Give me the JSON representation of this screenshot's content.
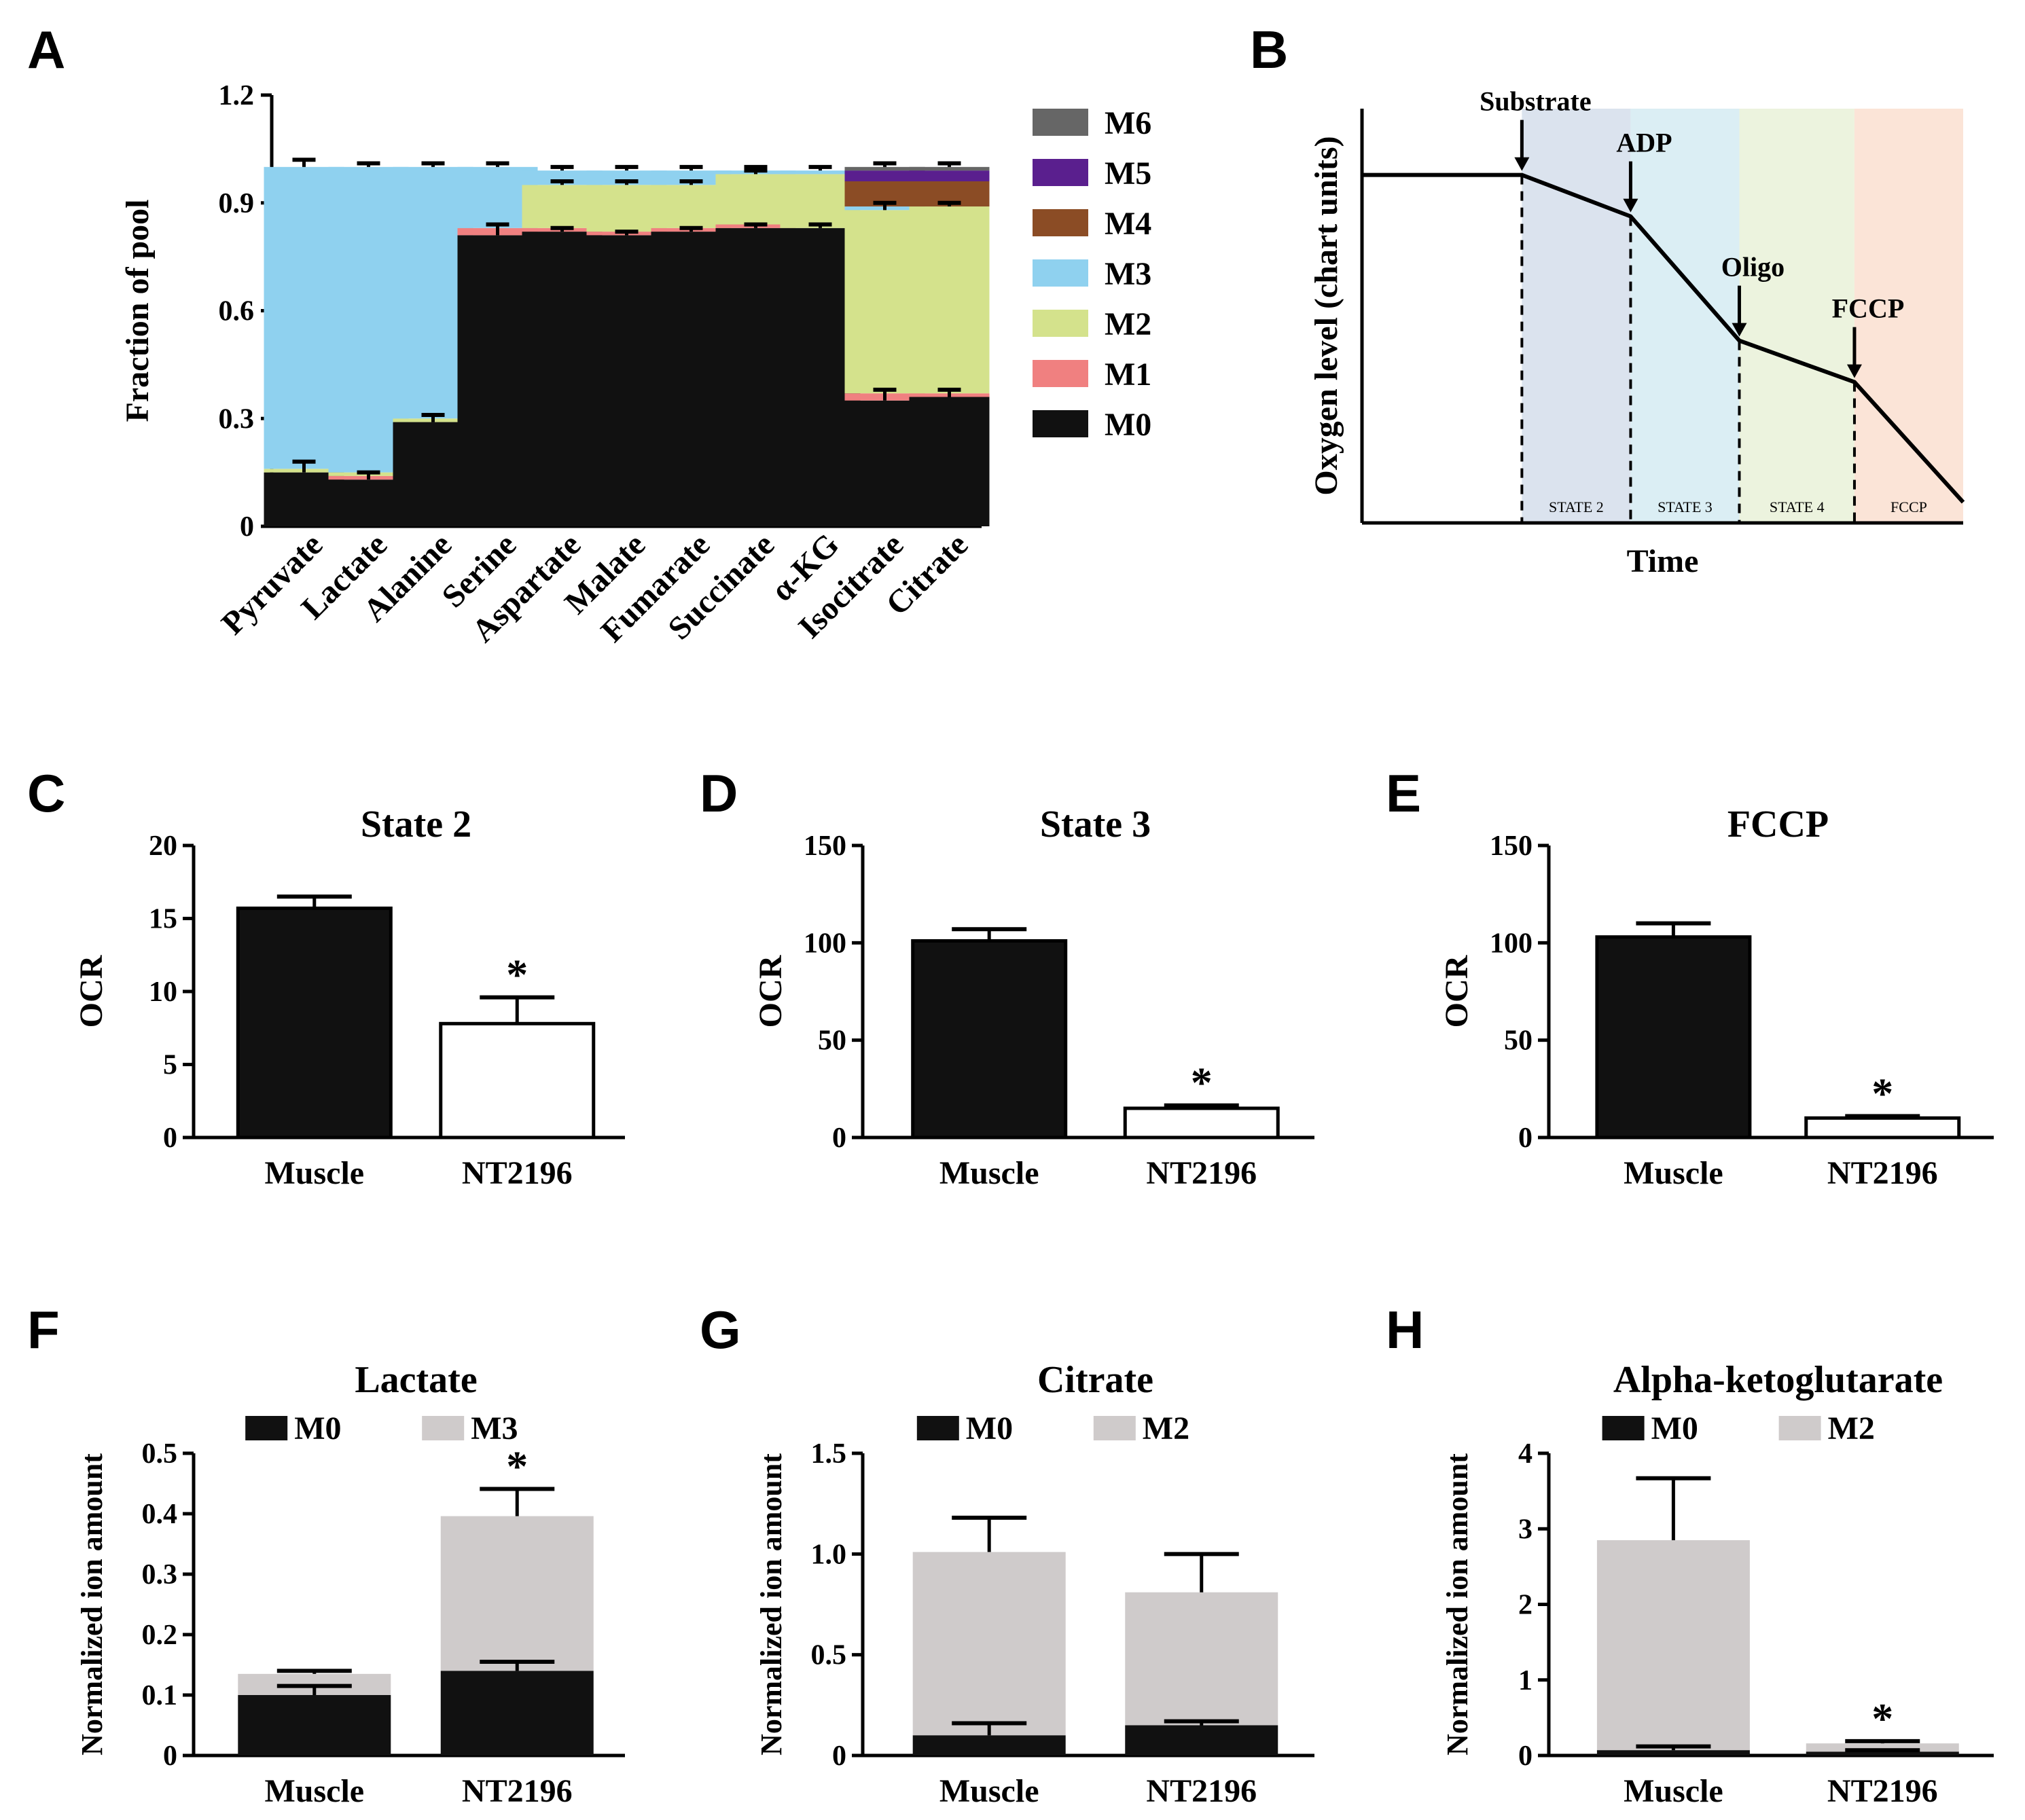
{
  "panels": {
    "A": {
      "label": "A"
    },
    "B": {
      "label": "B"
    },
    "C": {
      "label": "C"
    },
    "D": {
      "label": "D"
    },
    "E": {
      "label": "E"
    },
    "F": {
      "label": "F"
    },
    "G": {
      "label": "G"
    },
    "H": {
      "label": "H"
    }
  },
  "colors": {
    "M0": "#111111",
    "M1": "#f08080",
    "M2": "#d4e28c",
    "M3": "#8fd1ef",
    "M4": "#8b4c25",
    "M5": "#5a1f8e",
    "M6": "#666666",
    "gray": "#cfcbcb",
    "state2": "#dbe3ee",
    "state3": "#dbeef4",
    "state4": "#ecf3de",
    "fccp": "#fbe4d7"
  },
  "chart_data": [
    {
      "id": "A",
      "type": "bar",
      "stacked": true,
      "ylabel": "Fraction of pool",
      "xlabel": "",
      "ylim": [
        0,
        1.2
      ],
      "yticks": [
        "0",
        "0.3",
        "0.6",
        "0.9",
        "1.2"
      ],
      "categories": [
        "Pyruvate",
        "Lactate",
        "Alanine",
        "Serine",
        "Aspartate",
        "Malate",
        "Fumarate",
        "Succinate",
        "α-KG",
        "Isocitrate",
        "Citrate"
      ],
      "legend": [
        "M6",
        "M5",
        "M4",
        "M3",
        "M2",
        "M1",
        "M0"
      ],
      "series": [
        {
          "name": "M0",
          "values": [
            0.15,
            0.13,
            0.29,
            0.81,
            0.82,
            0.81,
            0.82,
            0.83,
            0.83,
            0.35,
            0.36
          ]
        },
        {
          "name": "M1",
          "values": [
            0.0,
            0.01,
            0.0,
            0.02,
            0.01,
            0.01,
            0.01,
            0.01,
            0.0,
            0.02,
            0.01
          ]
        },
        {
          "name": "M2",
          "values": [
            0.01,
            0.01,
            0.01,
            0.0,
            0.12,
            0.13,
            0.12,
            0.14,
            0.15,
            0.51,
            0.52
          ]
        },
        {
          "name": "M3",
          "values": [
            0.84,
            0.85,
            0.7,
            0.17,
            0.04,
            0.04,
            0.04,
            0.01,
            0.01,
            0.01,
            0.0
          ]
        },
        {
          "name": "M4",
          "values": [
            0,
            0,
            0,
            0,
            0,
            0,
            0,
            0,
            0,
            0.07,
            0.07
          ]
        },
        {
          "name": "M5",
          "values": [
            0,
            0,
            0,
            0,
            0,
            0,
            0,
            0,
            0,
            0.03,
            0.03
          ]
        },
        {
          "name": "M6",
          "values": [
            0,
            0,
            0,
            0,
            0,
            0,
            0,
            0,
            0,
            0.01,
            0.01
          ]
        }
      ],
      "errors_top": [
        0.02,
        0.01,
        0.01,
        0.01,
        0.01,
        0.01,
        0.01,
        0.01,
        0.01,
        0.01,
        0.01
      ],
      "errors_m0": [
        0.03,
        0.02,
        0.02,
        0.03,
        0.01,
        0.01,
        0.01,
        0.01,
        0.01,
        0.03,
        0.02
      ],
      "errors_m2": [
        0,
        0,
        0,
        0,
        0.01,
        0.01,
        0.01,
        0.01,
        0,
        0.02,
        0.01
      ]
    },
    {
      "id": "B",
      "type": "line",
      "xlabel": "Time",
      "ylabel": "Oxygen level (chart units)",
      "x": [
        0,
        0.25,
        0.42,
        0.59,
        0.77,
        0.94
      ],
      "y": [
        0.84,
        0.84,
        0.74,
        0.44,
        0.34,
        0.05
      ],
      "xlim": [
        0,
        0.94
      ],
      "ylim": [
        0,
        1
      ],
      "annotations": [
        "Substrate",
        "ADP",
        "Oligo",
        "FCCP"
      ],
      "regions": [
        {
          "name": "STATE 2",
          "start": 0.25,
          "end": 0.42
        },
        {
          "name": "STATE 3",
          "start": 0.42,
          "end": 0.59
        },
        {
          "name": "STATE 4",
          "start": 0.59,
          "end": 0.77
        },
        {
          "name": "FCCP",
          "start": 0.77,
          "end": 0.94
        }
      ]
    },
    {
      "id": "C",
      "type": "bar",
      "title": "State 2",
      "ylabel": "OCR",
      "xlabel": "",
      "categories": [
        "Muscle",
        "NT2196"
      ],
      "values": [
        15.7,
        7.8
      ],
      "errors": [
        0.8,
        1.8
      ],
      "ylim": [
        0,
        20
      ],
      "yticks": [
        "0",
        "5",
        "10",
        "15",
        "20"
      ],
      "significance": [
        "",
        "*"
      ]
    },
    {
      "id": "D",
      "type": "bar",
      "title": "State 3",
      "ylabel": "OCR",
      "xlabel": "",
      "categories": [
        "Muscle",
        "NT2196"
      ],
      "values": [
        101,
        15
      ],
      "errors": [
        6,
        1.5
      ],
      "ylim": [
        0,
        150
      ],
      "yticks": [
        "0",
        "50",
        "100",
        "150"
      ],
      "significance": [
        "",
        "*"
      ]
    },
    {
      "id": "E",
      "type": "bar",
      "title": "FCCP",
      "ylabel": "OCR",
      "xlabel": "",
      "categories": [
        "Muscle",
        "NT2196"
      ],
      "values": [
        103,
        10
      ],
      "errors": [
        7,
        1
      ],
      "ylim": [
        0,
        150
      ],
      "yticks": [
        "0",
        "50",
        "100",
        "150"
      ],
      "significance": [
        "",
        "*"
      ]
    },
    {
      "id": "F",
      "type": "bar",
      "stacked": true,
      "title": "Lactate",
      "ylabel": "Normalized ion amount",
      "xlabel": "",
      "categories": [
        "Muscle",
        "NT2196"
      ],
      "legend": [
        "M0",
        "M3"
      ],
      "series": [
        {
          "name": "M0",
          "values": [
            0.1,
            0.14
          ],
          "errors": [
            0.015,
            0.015
          ]
        },
        {
          "name": "M3",
          "values": [
            0.035,
            0.256
          ],
          "errors": [
            0.005,
            0.045
          ]
        }
      ],
      "ylim": [
        0,
        0.5
      ],
      "yticks": [
        "0",
        "0.1",
        "0.2",
        "0.3",
        "0.4",
        "0.5"
      ],
      "significance": [
        "",
        "*"
      ]
    },
    {
      "id": "G",
      "type": "bar",
      "stacked": true,
      "title": "Citrate",
      "ylabel": "Normalized ion amount",
      "xlabel": "",
      "categories": [
        "Muscle",
        "NT2196"
      ],
      "legend": [
        "M0",
        "M2"
      ],
      "series": [
        {
          "name": "M0",
          "values": [
            0.1,
            0.15
          ],
          "errors": [
            0.06,
            0.02
          ]
        },
        {
          "name": "M2",
          "values": [
            0.91,
            0.66
          ],
          "errors": [
            0.17,
            0.19
          ]
        }
      ],
      "ylim": [
        0,
        1.5
      ],
      "yticks": [
        "0",
        "0.5",
        "1.0",
        "1.5"
      ],
      "significance": [
        "",
        ""
      ]
    },
    {
      "id": "H",
      "type": "bar",
      "stacked": true,
      "title": "Alpha-ketoglutarate",
      "ylabel": "Normalized ion amount",
      "xlabel": "",
      "categories": [
        "Muscle",
        "NT2196"
      ],
      "legend": [
        "M0",
        "M2"
      ],
      "series": [
        {
          "name": "M0",
          "values": [
            0.07,
            0.05
          ],
          "errors": [
            0.05,
            0.02
          ]
        },
        {
          "name": "M2",
          "values": [
            2.78,
            0.11
          ],
          "errors": [
            0.82,
            0.03
          ]
        }
      ],
      "ylim": [
        0,
        4
      ],
      "yticks": [
        "0",
        "1",
        "2",
        "3",
        "4"
      ],
      "significance": [
        "",
        "*"
      ]
    }
  ]
}
